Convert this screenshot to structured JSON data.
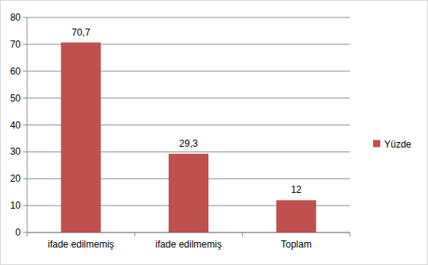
{
  "chart_data": {
    "type": "bar",
    "categories": [
      "ifade edilmemiş",
      "ifade edilmemiş",
      "Toplam"
    ],
    "series": [
      {
        "name": "Yüzde",
        "color": "#c0504d",
        "values": [
          70.7,
          29.3,
          12
        ],
        "value_labels": [
          "70,7",
          "29,3",
          "12"
        ]
      }
    ],
    "ylim": [
      0,
      80
    ],
    "yticks": [
      0,
      10,
      20,
      30,
      40,
      50,
      60,
      70,
      80
    ],
    "grid": true,
    "data_labels": true,
    "legend": "right"
  }
}
